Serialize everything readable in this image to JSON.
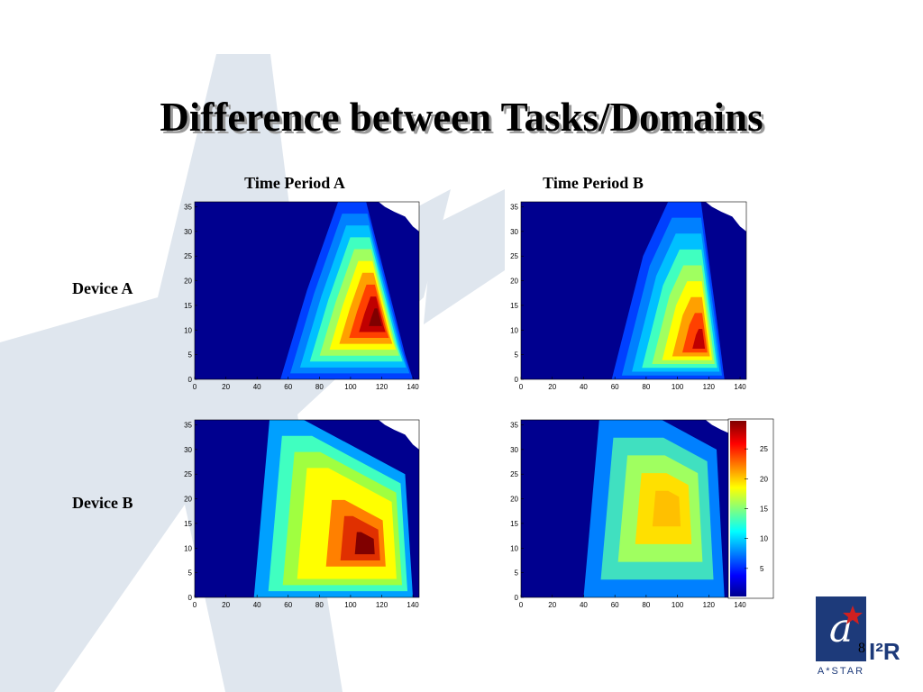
{
  "title": "Difference between Tasks/Domains",
  "columns": [
    "Time Period A",
    "Time Period B"
  ],
  "rows": [
    "Device A",
    "Device B"
  ],
  "panels": [
    {
      "xlim": [
        0,
        144
      ],
      "ylim": [
        0,
        36
      ],
      "xticks": [
        0,
        20,
        40,
        60,
        80,
        100,
        120,
        140
      ],
      "yticks": [
        0,
        5,
        10,
        15,
        20,
        25,
        30,
        35
      ]
    },
    {
      "xlim": [
        0,
        144
      ],
      "ylim": [
        0,
        36
      ],
      "xticks": [
        0,
        20,
        40,
        60,
        80,
        100,
        120,
        140
      ],
      "yticks": [
        0,
        5,
        10,
        15,
        20,
        25,
        30,
        35
      ]
    },
    {
      "xlim": [
        0,
        144
      ],
      "ylim": [
        0,
        36
      ],
      "xticks": [
        0,
        20,
        40,
        60,
        80,
        100,
        120,
        140
      ],
      "yticks": [
        0,
        5,
        10,
        15,
        20,
        25,
        30,
        35
      ]
    },
    {
      "xlim": [
        0,
        144
      ],
      "ylim": [
        0,
        36
      ],
      "xticks": [
        0,
        20,
        40,
        60,
        80,
        100,
        120,
        140
      ],
      "yticks": [
        0,
        5,
        10,
        15,
        20,
        25,
        30,
        35
      ]
    }
  ],
  "colorbar": {
    "lim": [
      0,
      30
    ],
    "ticks": [
      5,
      10,
      15,
      20,
      25
    ]
  },
  "page_number": "8",
  "logo": {
    "brand": "A*STAR",
    "institute": "I²R"
  }
}
